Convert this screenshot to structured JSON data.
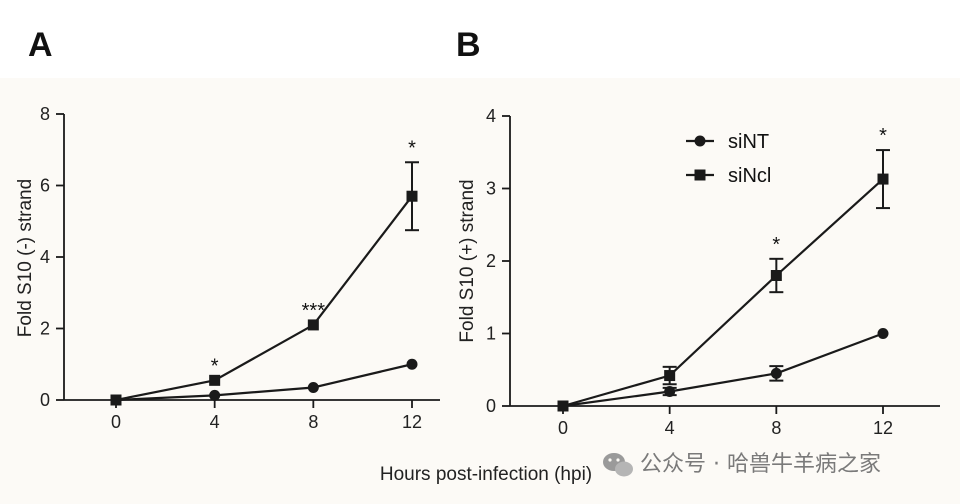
{
  "colors": {
    "line": "#1a1a1a",
    "background": "#fcfaf6",
    "watermark": "#8a8a8a"
  },
  "xlabel": "Hours post-infection (hpi)",
  "watermark": {
    "text": "公众号 · 哈兽牛羊病之家",
    "icon": "wechat-icon"
  },
  "chart_data": [
    {
      "type": "line",
      "panel": "A",
      "ylabel": "Fold S10 (-) strand",
      "xlabel": "Hours post-infection (hpi)",
      "x": [
        0,
        4,
        8,
        12
      ],
      "ylim": [
        0,
        8
      ],
      "yticks": [
        0,
        2,
        4,
        6,
        8
      ],
      "grid": false,
      "series": [
        {
          "marker": "circle",
          "values": [
            0,
            0.13,
            0.35,
            1.0
          ],
          "errors": [
            0,
            0,
            0,
            0
          ]
        },
        {
          "marker": "square",
          "values": [
            0,
            0.55,
            2.1,
            5.7
          ],
          "errors": [
            0,
            0,
            0,
            0.95
          ]
        }
      ],
      "significance": [
        {
          "x": 4,
          "label": "*"
        },
        {
          "x": 8,
          "label": "***"
        },
        {
          "x": 12,
          "label": "*"
        }
      ]
    },
    {
      "type": "line",
      "panel": "B",
      "ylabel": "Fold S10 (+) strand",
      "xlabel": "Hours post-infection (hpi)",
      "x": [
        0,
        4,
        8,
        12
      ],
      "ylim": [
        0,
        4
      ],
      "yticks": [
        0,
        1,
        2,
        3,
        4
      ],
      "grid": false,
      "legend_position": "top-right",
      "series": [
        {
          "name": "siNT",
          "marker": "circle",
          "values": [
            0,
            0.2,
            0.45,
            1.0
          ],
          "errors": [
            0,
            0.05,
            0.1,
            0
          ]
        },
        {
          "name": "siNcl",
          "marker": "square",
          "values": [
            0,
            0.42,
            1.8,
            3.13
          ],
          "errors": [
            0,
            0.12,
            0.23,
            0.4
          ]
        }
      ],
      "significance": [
        {
          "x": 8,
          "label": "*"
        },
        {
          "x": 12,
          "label": "*"
        }
      ]
    }
  ]
}
